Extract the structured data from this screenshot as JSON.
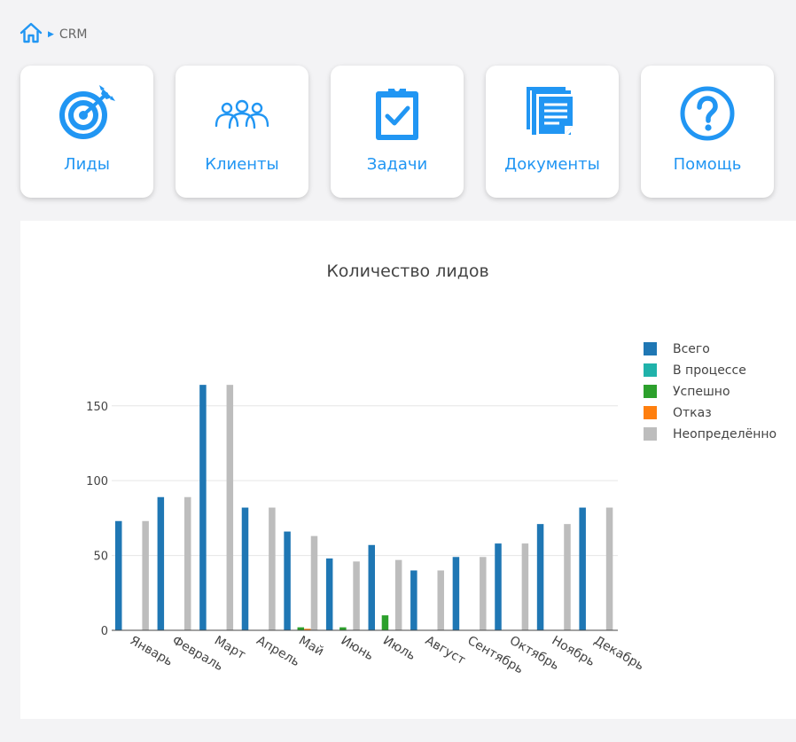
{
  "breadcrumb": {
    "current": "CRM"
  },
  "tiles": [
    {
      "label": "Лиды",
      "icon": "target-icon"
    },
    {
      "label": "Клиенты",
      "icon": "users-icon"
    },
    {
      "label": "Задачи",
      "icon": "clipboard-check-icon"
    },
    {
      "label": "Документы",
      "icon": "documents-icon"
    },
    {
      "label": "Помощь",
      "icon": "help-icon"
    }
  ],
  "colors": {
    "accent": "#2196f3"
  },
  "chart_data": {
    "type": "bar",
    "title": "Количество лидов",
    "categories": [
      "Январь",
      "Февраль",
      "Март",
      "Апрель",
      "Май",
      "Июнь",
      "Июль",
      "Август",
      "Сентябрь",
      "Октябрь",
      "Ноябрь",
      "Декабрь"
    ],
    "series": [
      {
        "name": "Всего",
        "color": "#1f77b4",
        "values": [
          73,
          89,
          164,
          82,
          66,
          48,
          57,
          40,
          49,
          58,
          71,
          82
        ]
      },
      {
        "name": "В процессе",
        "color": "#20b2aa",
        "values": [
          0,
          0,
          0,
          0,
          0,
          0,
          0,
          0,
          0,
          0,
          0,
          0
        ]
      },
      {
        "name": "Успешно",
        "color": "#2ca02c",
        "values": [
          0,
          0,
          0,
          0,
          2,
          2,
          10,
          0,
          0,
          0,
          0,
          0
        ]
      },
      {
        "name": "Отказ",
        "color": "#ff7f0e",
        "values": [
          0,
          0,
          0,
          0,
          1,
          0,
          0,
          0,
          0,
          0,
          0,
          0
        ]
      },
      {
        "name": "Неопределённо",
        "color": "#bdbdbd",
        "values": [
          73,
          89,
          164,
          82,
          63,
          46,
          47,
          40,
          49,
          58,
          71,
          82
        ]
      }
    ],
    "ylim": [
      0,
      170
    ],
    "yticks": [
      0,
      50,
      100,
      150
    ],
    "grid": true,
    "legend": "right"
  }
}
